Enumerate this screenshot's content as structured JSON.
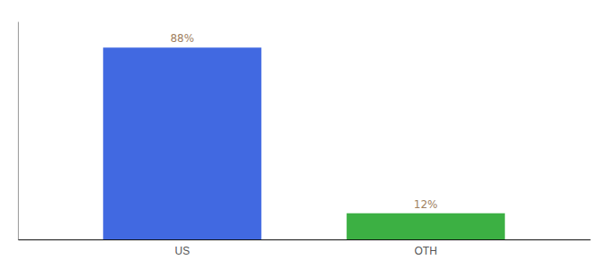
{
  "chart_data": {
    "type": "bar",
    "categories": [
      "US",
      "OTH"
    ],
    "values": [
      88,
      12
    ],
    "value_labels": [
      "88%",
      "12%"
    ],
    "colors": [
      "#4169e1",
      "#3cb043"
    ],
    "ylim": [
      0,
      100
    ],
    "yticks": [],
    "grid": false,
    "data_labels": true,
    "tick_labels": "x"
  }
}
